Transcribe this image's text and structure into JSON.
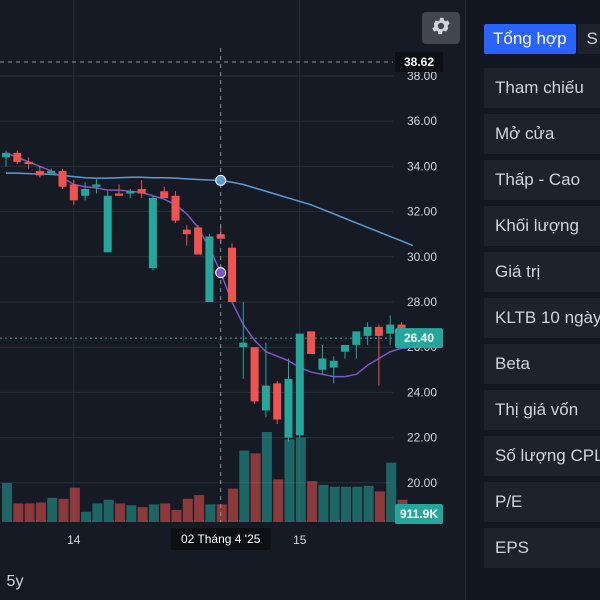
{
  "chart": {
    "price_ticks": [
      "38.00",
      "36.00",
      "34.00",
      "32.00",
      "30.00",
      "28.00",
      "26.00",
      "24.00",
      "22.00",
      "20.00"
    ],
    "x_ticks": [
      "14",
      "15"
    ],
    "crosshair_date": "02 Tháng 4 '25",
    "crosshair_price": "38.62",
    "last_price": "26.40",
    "last_volume": "911.9K",
    "range_button": "5y",
    "settings_icon": "gear-icon",
    "colors": {
      "background": "#161a25",
      "up": "#26a69a",
      "down": "#ef5350",
      "ma_short": "#7e57c2",
      "ma_long": "#5b9bd5",
      "grid": "#2a2e39",
      "last_price_badge": "#26a69a"
    }
  },
  "chart_data": {
    "type": "candlestick",
    "grid": true,
    "ylim": [
      19.2,
      38.7
    ],
    "y_ticks": [
      38,
      36,
      34,
      32,
      30,
      28,
      26,
      24,
      22,
      20
    ],
    "candles": [
      {
        "o": 34.4,
        "h": 34.7,
        "l": 34.0,
        "c": 34.6
      },
      {
        "o": 34.6,
        "h": 34.7,
        "l": 34.1,
        "c": 34.2
      },
      {
        "o": 34.2,
        "h": 34.4,
        "l": 33.9,
        "c": 34.1
      },
      {
        "o": 33.8,
        "h": 34.0,
        "l": 33.5,
        "c": 33.6
      },
      {
        "o": 33.7,
        "h": 33.9,
        "l": 33.6,
        "c": 33.8
      },
      {
        "o": 33.8,
        "h": 33.9,
        "l": 33.0,
        "c": 33.1
      },
      {
        "o": 33.2,
        "h": 33.4,
        "l": 32.3,
        "c": 32.5
      },
      {
        "o": 32.7,
        "h": 33.3,
        "l": 32.5,
        "c": 33.0
      },
      {
        "o": 33.1,
        "h": 33.5,
        "l": 32.8,
        "c": 33.2
      },
      {
        "o": 30.2,
        "h": 32.9,
        "l": 30.2,
        "c": 32.7
      },
      {
        "o": 32.8,
        "h": 33.2,
        "l": 32.7,
        "c": 32.7
      },
      {
        "o": 32.8,
        "h": 33.0,
        "l": 32.6,
        "c": 32.9
      },
      {
        "o": 33.0,
        "h": 33.4,
        "l": 32.6,
        "c": 32.8
      },
      {
        "o": 29.5,
        "h": 32.7,
        "l": 29.4,
        "c": 32.6
      },
      {
        "o": 32.9,
        "h": 33.1,
        "l": 32.6,
        "c": 32.6
      },
      {
        "o": 32.7,
        "h": 32.9,
        "l": 31.5,
        "c": 31.6
      },
      {
        "o": 31.2,
        "h": 31.4,
        "l": 30.5,
        "c": 31.0
      },
      {
        "o": 31.3,
        "h": 31.4,
        "l": 30.1,
        "c": 30.1
      },
      {
        "o": 28.0,
        "h": 31.0,
        "l": 28.0,
        "c": 30.9
      },
      {
        "o": 31.0,
        "h": 31.3,
        "l": 30.6,
        "c": 30.8
      },
      {
        "o": 30.4,
        "h": 30.6,
        "l": 28.0,
        "c": 28.0
      },
      {
        "o": 26.0,
        "h": 28.0,
        "l": 24.6,
        "c": 26.2
      },
      {
        "o": 26.0,
        "h": 26.0,
        "l": 23.5,
        "c": 23.6
      },
      {
        "o": 23.2,
        "h": 26.2,
        "l": 22.9,
        "c": 24.3
      },
      {
        "o": 24.4,
        "h": 24.5,
        "l": 22.6,
        "c": 22.8
      },
      {
        "o": 22.0,
        "h": 25.5,
        "l": 21.8,
        "c": 24.6
      },
      {
        "o": 22.1,
        "h": 26.6,
        "l": 22.0,
        "c": 26.6
      },
      {
        "o": 26.7,
        "h": 26.7,
        "l": 25.7,
        "c": 25.7
      },
      {
        "o": 25.0,
        "h": 26.1,
        "l": 24.8,
        "c": 25.5
      },
      {
        "o": 25.1,
        "h": 25.6,
        "l": 24.4,
        "c": 25.4
      },
      {
        "o": 25.8,
        "h": 26.1,
        "l": 25.5,
        "c": 26.1
      },
      {
        "o": 26.1,
        "h": 26.6,
        "l": 25.5,
        "c": 26.7
      },
      {
        "o": 26.5,
        "h": 27.1,
        "l": 26.1,
        "c": 26.9
      },
      {
        "o": 26.9,
        "h": 27.0,
        "l": 24.3,
        "c": 26.5
      },
      {
        "o": 26.6,
        "h": 27.4,
        "l": 26.1,
        "c": 27.0
      },
      {
        "o": 27.0,
        "h": 27.1,
        "l": 26.2,
        "c": 26.3
      },
      {
        "o": 26.3,
        "h": 26.6,
        "l": 26.2,
        "c": 26.4
      }
    ],
    "volume_heights": [
      0.42,
      0.2,
      0.2,
      0.21,
      0.26,
      0.25,
      0.37,
      0.11,
      0.2,
      0.24,
      0.2,
      0.18,
      0.16,
      0.19,
      0.2,
      0.13,
      0.25,
      0.29,
      0.19,
      0.19,
      0.36,
      0.77,
      0.74,
      0.97,
      0.46,
      0.89,
      0.91,
      0.44,
      0.4,
      0.38,
      0.38,
      0.38,
      0.39,
      0.33,
      0.64,
      0.24,
      0.11
    ],
    "ma_short": [
      34.6,
      34.4,
      34.2,
      34.0,
      33.8,
      33.5,
      33.2,
      33.1,
      33.05,
      32.95,
      32.95,
      32.9,
      32.85,
      32.7,
      32.55,
      32.3,
      31.9,
      31.3,
      30.4,
      29.3,
      28.0,
      27.0,
      26.3,
      25.8,
      25.6,
      25.4,
      25.1,
      24.9,
      24.8,
      24.7,
      24.7,
      24.8,
      25.2,
      25.5,
      25.8,
      25.95,
      26.0
    ],
    "ma_long": [
      33.7,
      33.7,
      33.68,
      33.66,
      33.65,
      33.6,
      33.55,
      33.5,
      33.48,
      33.48,
      33.5,
      33.52,
      33.52,
      33.5,
      33.5,
      33.48,
      33.45,
      33.42,
      33.4,
      33.38,
      33.3,
      33.2,
      33.05,
      32.9,
      32.75,
      32.6,
      32.45,
      32.3,
      32.1,
      31.9,
      31.7,
      31.5,
      31.3,
      31.1,
      30.9,
      30.7,
      30.5
    ],
    "crosshair_index": 19
  },
  "sidebar": {
    "tabs": [
      {
        "label": "Tổng hợp"
      },
      {
        "label": "S"
      }
    ],
    "rows": [
      {
        "label": "Tham chiếu"
      },
      {
        "label": "Mở cửa"
      },
      {
        "label": "Thấp - Cao"
      },
      {
        "label": "Khối lượng"
      },
      {
        "label": "Giá trị"
      },
      {
        "label": "KLTB 10 ngày"
      },
      {
        "label": "Beta"
      },
      {
        "label": "Thị giá vốn"
      },
      {
        "label": "Số lượng CPLH"
      },
      {
        "label": "P/E"
      },
      {
        "label": "EPS"
      }
    ]
  }
}
